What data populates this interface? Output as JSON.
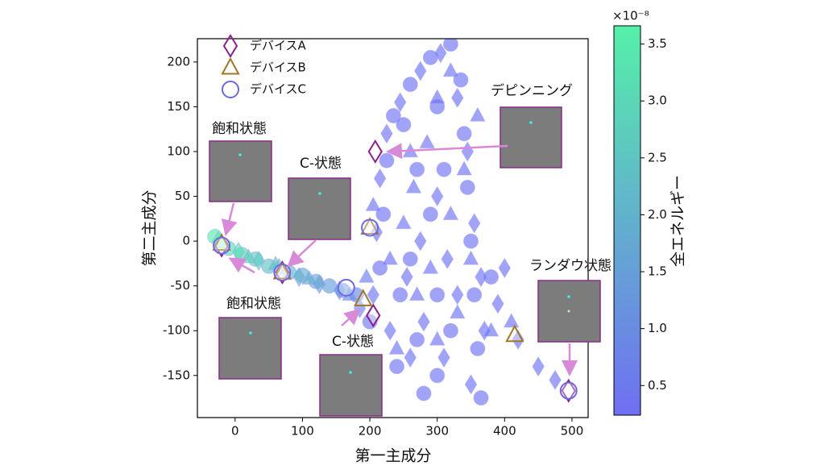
{
  "chart_data": {
    "type": "scatter",
    "xlabel": "第一主成分",
    "ylabel": "第二主成分",
    "xlim": [
      -56,
      524
    ],
    "ylim": [
      -197,
      226
    ],
    "xticks": [
      0,
      100,
      200,
      300,
      400,
      500
    ],
    "yticks": [
      -150,
      -100,
      -50,
      0,
      50,
      100,
      150,
      200
    ],
    "legend": "upper left",
    "colorbar": {
      "label": "全エネルギー",
      "offset": "×10⁻⁸",
      "lim": [
        0.24,
        3.66
      ],
      "ticks": [
        0.5,
        {
          "value": 1.0,
          "label": "1.0"
        },
        1.5,
        {
          "value": 2.0,
          "label": "2.0"
        },
        2.5,
        {
          "value": 3.0,
          "label": "3.0"
        },
        3.5
      ],
      "colors": [
        "#6f6ff2",
        "#55f0a8"
      ]
    },
    "cloud": [
      {
        "marker": "circle",
        "x": [
          -30,
          -10,
          10,
          30,
          50,
          80,
          100,
          120,
          140,
          160,
          180,
          200,
          215,
          220,
          225,
          235,
          260,
          290,
          320,
          335,
          340,
          345,
          350,
          355,
          360,
          365,
          300,
          270,
          245,
          260,
          290,
          310,
          300,
          320,
          270,
          250,
          380,
          300,
          240,
          280
        ],
        "y": [
          5,
          -8,
          -15,
          -20,
          -28,
          -35,
          -38,
          -45,
          -50,
          -55,
          -60,
          -90,
          -30,
          30,
          90,
          140,
          175,
          205,
          220,
          180,
          120,
          60,
          0,
          -60,
          -120,
          -175,
          -150,
          -110,
          -60,
          -20,
          30,
          80,
          -60,
          -100,
          80,
          130,
          -40,
          150,
          -140,
          -170
        ],
        "energy": [
          3.6,
          3.3,
          3.0,
          2.8,
          2.5,
          2.2,
          2.0,
          1.8,
          1.5,
          1.2,
          0.9,
          0.5,
          0.3,
          0.3,
          0.3,
          0.3,
          0.3,
          0.3,
          0.3,
          0.3,
          0.3,
          0.3,
          0.3,
          0.3,
          0.3,
          0.3,
          0.3,
          0.3,
          0.3,
          0.3,
          0.3,
          0.3,
          0.3,
          0.3,
          0.3,
          0.3,
          0.3,
          0.3,
          0.3,
          0.3
        ]
      },
      {
        "marker": "diamond",
        "x": [
          -25,
          5,
          35,
          65,
          95,
          125,
          155,
          185,
          205,
          210,
          215,
          225,
          245,
          275,
          305,
          330,
          345,
          355,
          365,
          370,
          350,
          310,
          280,
          255,
          275,
          300,
          315,
          390,
          420,
          450,
          475,
          400,
          330,
          260,
          230
        ],
        "y": [
          0,
          -12,
          -22,
          -30,
          -40,
          -48,
          -55,
          -75,
          -60,
          10,
          70,
          120,
          155,
          190,
          210,
          160,
          100,
          20,
          -40,
          -100,
          -160,
          -130,
          -90,
          -40,
          0,
          50,
          -20,
          -70,
          -110,
          -140,
          -155,
          -30,
          -60,
          -130,
          -100
        ],
        "energy": [
          3.5,
          3.2,
          2.8,
          2.4,
          2.0,
          1.6,
          1.3,
          0.8,
          0.4,
          0.3,
          0.3,
          0.3,
          0.3,
          0.3,
          0.3,
          0.3,
          0.3,
          0.3,
          0.3,
          0.3,
          0.3,
          0.3,
          0.3,
          0.3,
          0.3,
          0.3,
          0.3,
          0.3,
          0.3,
          0.3,
          0.3,
          0.3,
          0.3,
          0.3,
          0.3
        ]
      },
      {
        "marker": "triangle",
        "x": [
          -20,
          20,
          60,
          110,
          170,
          195,
          205,
          230,
          250,
          265,
          285,
          300,
          320,
          340,
          350,
          330,
          300,
          270,
          240,
          380,
          410,
          290,
          320,
          360,
          260
        ],
        "y": [
          -2,
          -18,
          -26,
          -42,
          -60,
          -40,
          40,
          -20,
          20,
          60,
          110,
          160,
          190,
          80,
          -20,
          -80,
          -110,
          -60,
          -120,
          -100,
          -90,
          -30,
          30,
          140,
          100
        ],
        "energy": [
          3.4,
          2.9,
          2.5,
          1.9,
          1.1,
          0.6,
          0.3,
          0.3,
          0.3,
          0.3,
          0.3,
          0.3,
          0.3,
          0.3,
          0.3,
          0.3,
          0.3,
          0.3,
          0.3,
          0.3,
          0.3,
          0.3,
          0.3,
          0.3,
          0.3
        ]
      }
    ],
    "series": [
      {
        "name": "デバイスA",
        "color": "#8b1f8b",
        "marker": "diamond",
        "x": [
          208,
          -20,
          70,
          205,
          495
        ],
        "y": [
          100,
          -5,
          -35,
          -83,
          -167
        ]
      },
      {
        "name": "デバイスB",
        "color": "#a0762a",
        "marker": "triangle",
        "x": [
          -20,
          70,
          200,
          190,
          415
        ],
        "y": [
          -3,
          -35,
          15,
          -65,
          -105
        ]
      },
      {
        "name": "デバイスC",
        "color": "#6a6ae8",
        "marker": "circle",
        "x": [
          -20,
          70,
          165,
          495,
          200
        ],
        "y": [
          -5,
          -35,
          -52,
          -167,
          15
        ]
      }
    ],
    "annotations": [
      "飽和状態",
      "C-状態",
      "デピンニング",
      "飽和状態",
      "C-状態",
      "ランダウ状態"
    ]
  }
}
